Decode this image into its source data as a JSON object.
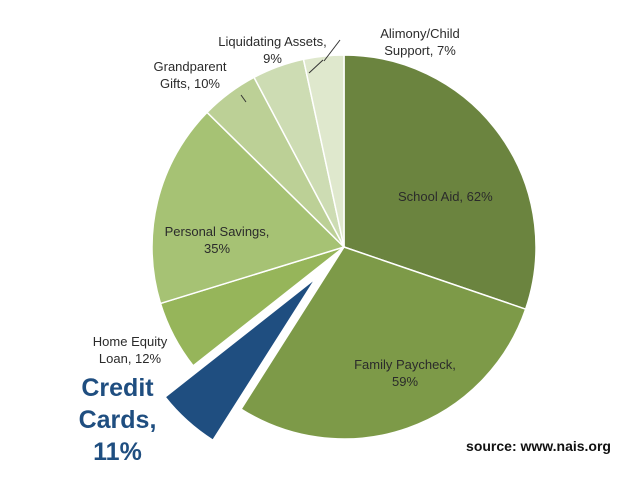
{
  "chart_data": {
    "type": "pie",
    "title": "",
    "slices": [
      {
        "label": "School Aid, 62%",
        "name": "School Aid",
        "percent_label": "62%",
        "value": 30.4,
        "color": "#6b843f"
      },
      {
        "label": "Family Paycheck, 59%",
        "name": "Family Paycheck",
        "percent_label": "59%",
        "value": 28.9,
        "color": "#7d9a48"
      },
      {
        "label": "Credit Cards, 11%",
        "name": "Credit Cards",
        "percent_label": "11%",
        "value": 5.4,
        "color": "#1f4e80",
        "exploded": true
      },
      {
        "label": "Home Equity Loan, 12%",
        "name": "Home Equity Loan",
        "percent_label": "12%",
        "value": 5.9,
        "color": "#96b55a"
      },
      {
        "label": "Personal Savings, 35%",
        "name": "Personal Savings",
        "percent_label": "35%",
        "value": 17.2,
        "color": "#a6c274"
      },
      {
        "label": "Grandparent Gifts, 10%",
        "name": "Grandparent Gifts",
        "percent_label": "10%",
        "value": 4.9,
        "color": "#bcd096"
      },
      {
        "label": "Liquidating Assets, 9%",
        "name": "Liquidating Assets",
        "percent_label": "9%",
        "value": 4.4,
        "color": "#cddcb3"
      },
      {
        "label": "Alimony/Child Support, 7%",
        "name": "Alimony/Child Support",
        "percent_label": "7%",
        "value": 3.4,
        "color": "#dfe8cd"
      }
    ]
  },
  "labels": {
    "school_aid": [
      "School Aid, 62%"
    ],
    "family_paycheck": [
      "Family Paycheck,",
      "59%"
    ],
    "credit_cards": [
      "Credit",
      "Cards,",
      "11%"
    ],
    "home_equity": [
      "Home Equity",
      "Loan, 12%"
    ],
    "personal_savings": [
      "Personal Savings,",
      "35%"
    ],
    "grandparent_gifts": [
      "Grandparent",
      "Gifts, 10%"
    ],
    "liquidating_assets": [
      "Liquidating Assets,",
      "9%"
    ],
    "alimony": [
      "Alimony/Child",
      "Support, 7%"
    ]
  },
  "source": "source: www.nais.org"
}
